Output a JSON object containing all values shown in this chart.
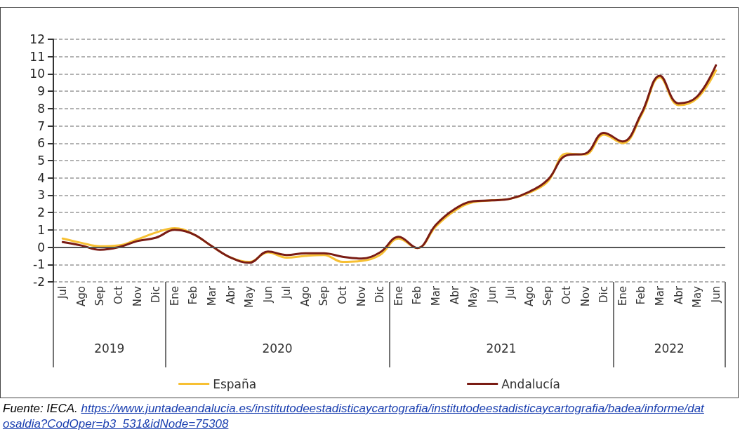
{
  "chart_data": {
    "type": "line",
    "categories": [
      "Jul",
      "Ago",
      "Sep",
      "Oct",
      "Nov",
      "Dic",
      "Ene",
      "Feb",
      "Mar",
      "Abr",
      "May",
      "Jun",
      "Jul",
      "Ago",
      "Sep",
      "Oct",
      "Nov",
      "Dic",
      "Ene",
      "Feb",
      "Mar",
      "Abr",
      "May",
      "Jun",
      "Jul",
      "Ago",
      "Sep",
      "Oct",
      "Nov",
      "Dic",
      "Ene",
      "Feb",
      "Mar",
      "Abr",
      "May",
      "Jun"
    ],
    "series": [
      {
        "name": "España",
        "color": "#f7c033",
        "values": [
          0.5,
          0.25,
          0.05,
          0.1,
          0.45,
          0.85,
          1.1,
          0.75,
          0.05,
          -0.6,
          -0.85,
          -0.3,
          -0.6,
          -0.5,
          -0.45,
          -0.85,
          -0.8,
          -0.45,
          0.5,
          -0.05,
          1.2,
          2.1,
          2.6,
          2.7,
          2.8,
          3.15,
          3.8,
          5.4,
          5.35,
          6.5,
          6.0,
          7.6,
          9.8,
          8.2,
          8.6,
          10.2
        ]
      },
      {
        "name": "Andalucía",
        "color": "#7a1c14",
        "values": [
          0.3,
          0.1,
          -0.15,
          0.0,
          0.35,
          0.55,
          1.0,
          0.75,
          0.05,
          -0.6,
          -0.9,
          -0.25,
          -0.45,
          -0.35,
          -0.35,
          -0.55,
          -0.65,
          -0.3,
          0.6,
          -0.05,
          1.3,
          2.2,
          2.65,
          2.7,
          2.8,
          3.2,
          3.9,
          5.3,
          5.4,
          6.6,
          6.1,
          7.7,
          9.9,
          8.3,
          8.7,
          10.5
        ]
      }
    ],
    "ylim": [
      -2,
      12
    ],
    "yticks": [
      -2,
      -1,
      0,
      1,
      2,
      3,
      4,
      5,
      6,
      7,
      8,
      9,
      10,
      11,
      12
    ],
    "grid": "y",
    "legend": "bottom",
    "marker": "none",
    "line_style": "solid",
    "ref_lines": [
      {
        "axis": "y",
        "value": 0,
        "color": "#555555"
      }
    ],
    "annotations": [
      "2019",
      "2020",
      "2021",
      "2022",
      "Fuente: IECA. https://www.juntadeandalucia.es/institutodeestadisticaycartografia/institutodeestadisticaycartografia/badea/informe/datosaldia?CodOper=b3_531&idNode=75308"
    ]
  }
}
